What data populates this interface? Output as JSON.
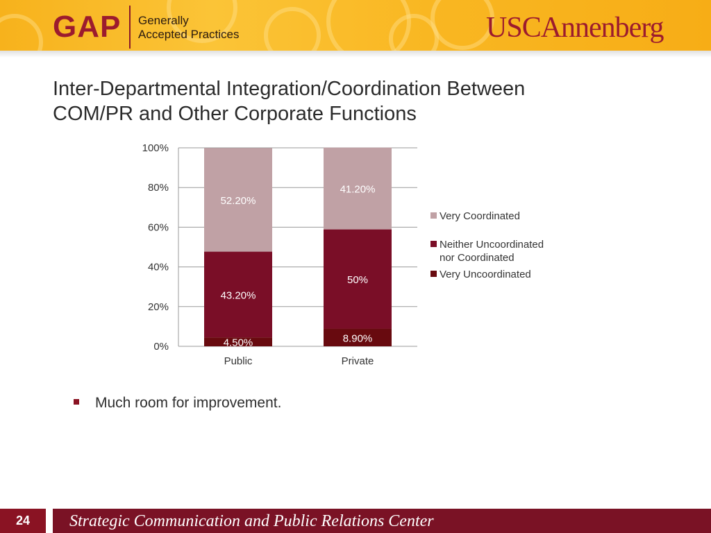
{
  "header": {
    "gap_logo": "GAP",
    "gap_subtitle_line1": "Generally",
    "gap_subtitle_line2": "Accepted Practices",
    "usc_logo": "USCAnnenberg"
  },
  "slide": {
    "title_line1": "Inter-Departmental Integration/Coordination Between",
    "title_line2": "COM/PR and Other Corporate Functions",
    "bullet": "Much room for improvement."
  },
  "footer": {
    "page_number": "24",
    "center_name": "Strategic Communication and Public Relations Center"
  },
  "colors": {
    "header_gold": "#f9b722",
    "brand_cardinal": "#8a1323",
    "very_coordinated": "#c0a1a5",
    "neither": "#7a0e27",
    "very_uncoordinated": "#680a0f"
  },
  "chart_data": {
    "type": "bar",
    "stacked": true,
    "categories": [
      "Public",
      "Private"
    ],
    "series": [
      {
        "name": "Very Uncoordinated",
        "values": [
          4.5,
          8.9
        ],
        "labels": [
          "4.50%",
          "8.90%"
        ],
        "color": "#680a0f"
      },
      {
        "name": "Neither Uncoordinated nor Coordinated",
        "values": [
          43.2,
          50
        ],
        "labels": [
          "43.20%",
          "50%"
        ],
        "color": "#7a0e27"
      },
      {
        "name": "Very Coordinated",
        "values": [
          52.2,
          41.2
        ],
        "labels": [
          "52.20%",
          "41.20%"
        ],
        "color": "#c0a1a5"
      }
    ],
    "legend_order": [
      "Very Coordinated",
      "Neither Uncoordinated nor Coordinated",
      "Very Uncoordinated"
    ],
    "legend_label_lines": {
      "Very Coordinated": [
        "Very Coordinated"
      ],
      "Neither Uncoordinated nor Coordinated": [
        "Neither Uncoordinated",
        "nor Coordinated"
      ],
      "Very Uncoordinated": [
        "Very Uncoordinated"
      ]
    },
    "yticks": [
      "0%",
      "20%",
      "40%",
      "60%",
      "80%",
      "100%"
    ],
    "ylim": [
      0,
      100
    ],
    "grid": true,
    "legend_position": "right",
    "title": "",
    "xlabel": "",
    "ylabel": ""
  }
}
